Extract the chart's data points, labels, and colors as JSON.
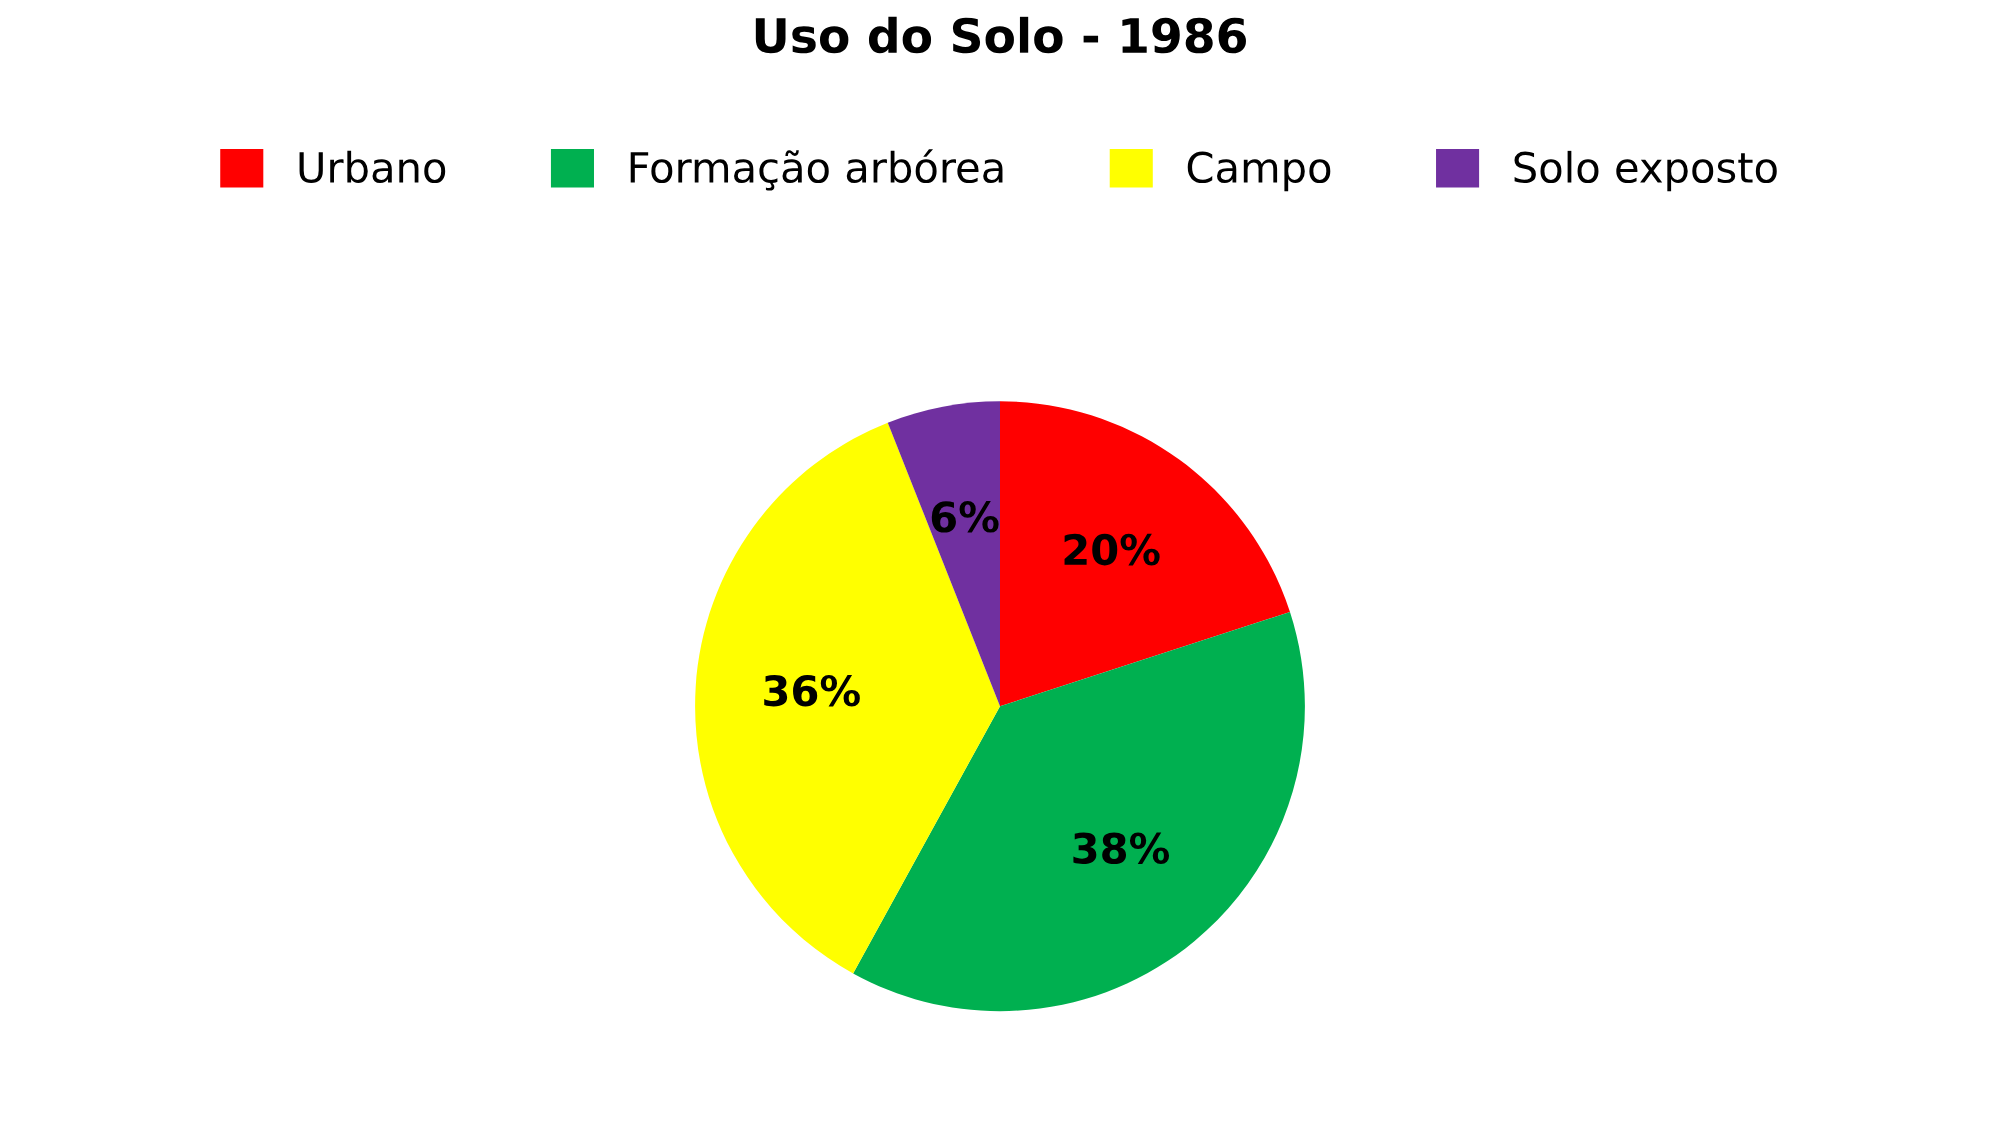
{
  "chart_data": {
    "type": "pie",
    "title": "Uso do Solo - 1986",
    "categories": [
      "Urbano",
      "Formação arbórea",
      "Campo",
      "Solo exposto"
    ],
    "values": [
      20,
      38,
      36,
      6
    ],
    "colors": [
      "#ff0000",
      "#00b050",
      "#ffff00",
      "#7030a0"
    ],
    "value_labels": [
      "20%",
      "38%",
      "36%",
      "6%"
    ],
    "legend": "top"
  }
}
